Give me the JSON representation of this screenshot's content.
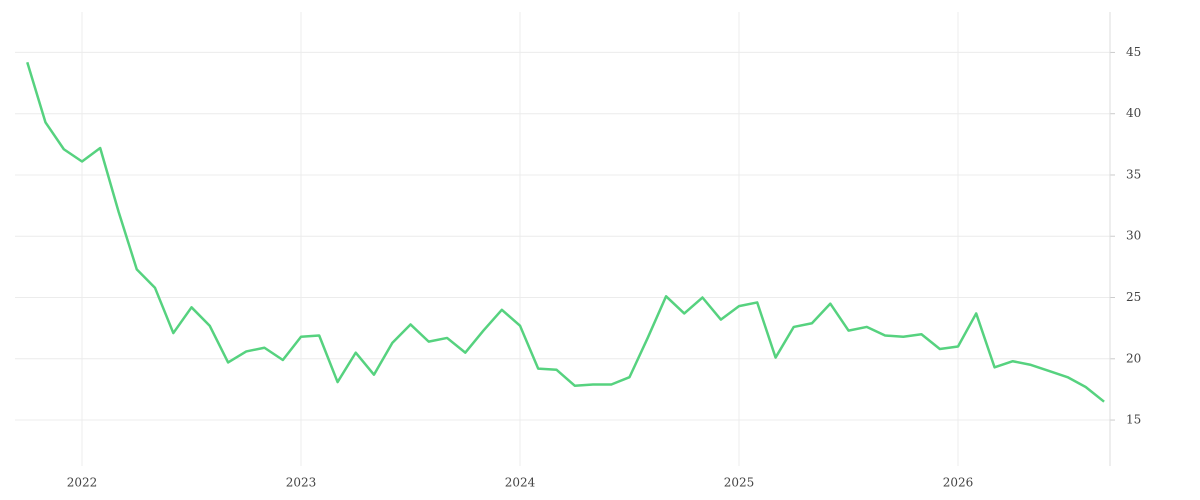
{
  "chart_data": {
    "type": "line",
    "x": [
      2021.75,
      2021.833,
      2021.917,
      2022.0,
      2022.083,
      2022.167,
      2022.25,
      2022.333,
      2022.417,
      2022.5,
      2022.583,
      2022.667,
      2022.75,
      2022.833,
      2022.917,
      2023.0,
      2023.083,
      2023.167,
      2023.25,
      2023.333,
      2023.417,
      2023.5,
      2023.583,
      2023.667,
      2023.75,
      2023.833,
      2023.917,
      2024.0,
      2024.083,
      2024.167,
      2024.25,
      2024.333,
      2024.417,
      2024.5,
      2024.583,
      2024.667,
      2024.75,
      2024.833,
      2024.917,
      2025.0,
      2025.083,
      2025.167,
      2025.25,
      2025.333,
      2025.417,
      2025.5,
      2025.583,
      2025.667,
      2025.75,
      2025.833,
      2025.917,
      2026.0,
      2026.083,
      2026.167,
      2026.25,
      2026.333,
      2026.417,
      2026.5,
      2026.583,
      2026.667
    ],
    "series": [
      {
        "color": "#56d27f",
        "values": [
          44.2,
          39.3,
          37.1,
          36.1,
          37.2,
          32.0,
          27.3,
          25.8,
          22.1,
          24.2,
          22.7,
          19.7,
          20.6,
          20.9,
          19.9,
          21.8,
          21.9,
          18.1,
          20.5,
          18.7,
          21.3,
          22.8,
          21.4,
          21.7,
          20.5,
          22.3,
          24.0,
          22.7,
          19.2,
          19.1,
          17.8,
          17.9,
          17.9,
          18.5,
          21.7,
          25.1,
          23.7,
          25.0,
          23.2,
          24.3,
          24.6,
          20.1,
          22.6,
          22.9,
          24.5,
          22.3,
          22.6,
          21.9,
          21.8,
          22.0,
          20.8,
          21.0,
          23.7,
          19.3,
          19.8,
          19.5,
          19.0,
          18.5,
          17.7,
          16.5
        ]
      }
    ],
    "xlim": [
      2021.694,
      2026.694
    ],
    "xticks": [
      2022,
      2023,
      2024,
      2025,
      2026
    ],
    "ylim": [
      11.25,
      48.3
    ],
    "yticks": [
      15,
      20,
      25,
      30,
      35,
      40,
      45
    ],
    "grid": true
  }
}
